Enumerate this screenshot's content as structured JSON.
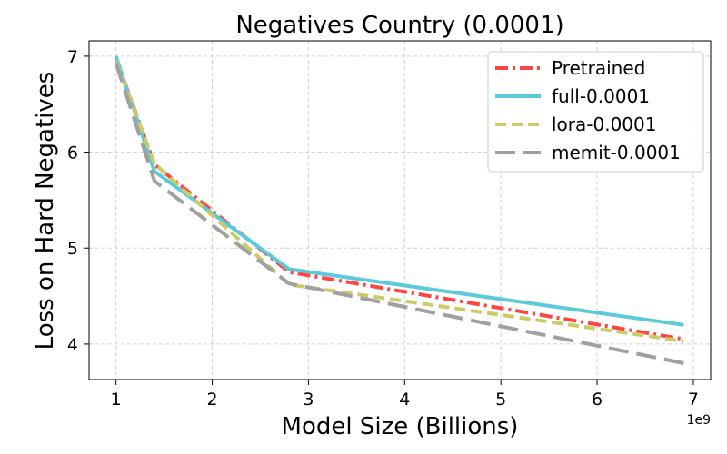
{
  "chart_data": {
    "type": "line",
    "title": "Negatives Country (0.0001)",
    "xlabel": "Model Size (Billions)",
    "ylabel": "Loss on Hard Negatives",
    "x_offset_label": "1e9",
    "xlim": [
      0.72,
      7.18
    ],
    "ylim": [
      3.63,
      7.16
    ],
    "xticks": [
      1,
      2,
      3,
      4,
      5,
      6,
      7
    ],
    "xtick_labels": [
      "1",
      "2",
      "3",
      "4",
      "5",
      "6",
      "7"
    ],
    "yticks": [
      4,
      5,
      6,
      7
    ],
    "ytick_labels": [
      "4",
      "5",
      "6",
      "7"
    ],
    "grid": true,
    "legend_position": "top-right",
    "x": [
      1.0,
      1.4,
      2.8,
      6.9
    ],
    "series": [
      {
        "name": "Pretrained",
        "values": [
          6.98,
          5.87,
          4.75,
          4.05
        ],
        "color": "#ff4444",
        "dash": "dash-dot"
      },
      {
        "name": "full-0.0001",
        "values": [
          7.0,
          5.8,
          4.78,
          4.2
        ],
        "color": "#5bcbdb",
        "dash": "solid"
      },
      {
        "name": "lora-0.0001",
        "values": [
          6.95,
          5.88,
          4.62,
          4.03
        ],
        "color": "#cccc66",
        "dash": "dashed"
      },
      {
        "name": "memit-0.0001",
        "values": [
          6.93,
          5.7,
          4.63,
          3.8
        ],
        "color": "#a0a0a0",
        "dash": "long-dash"
      }
    ]
  }
}
